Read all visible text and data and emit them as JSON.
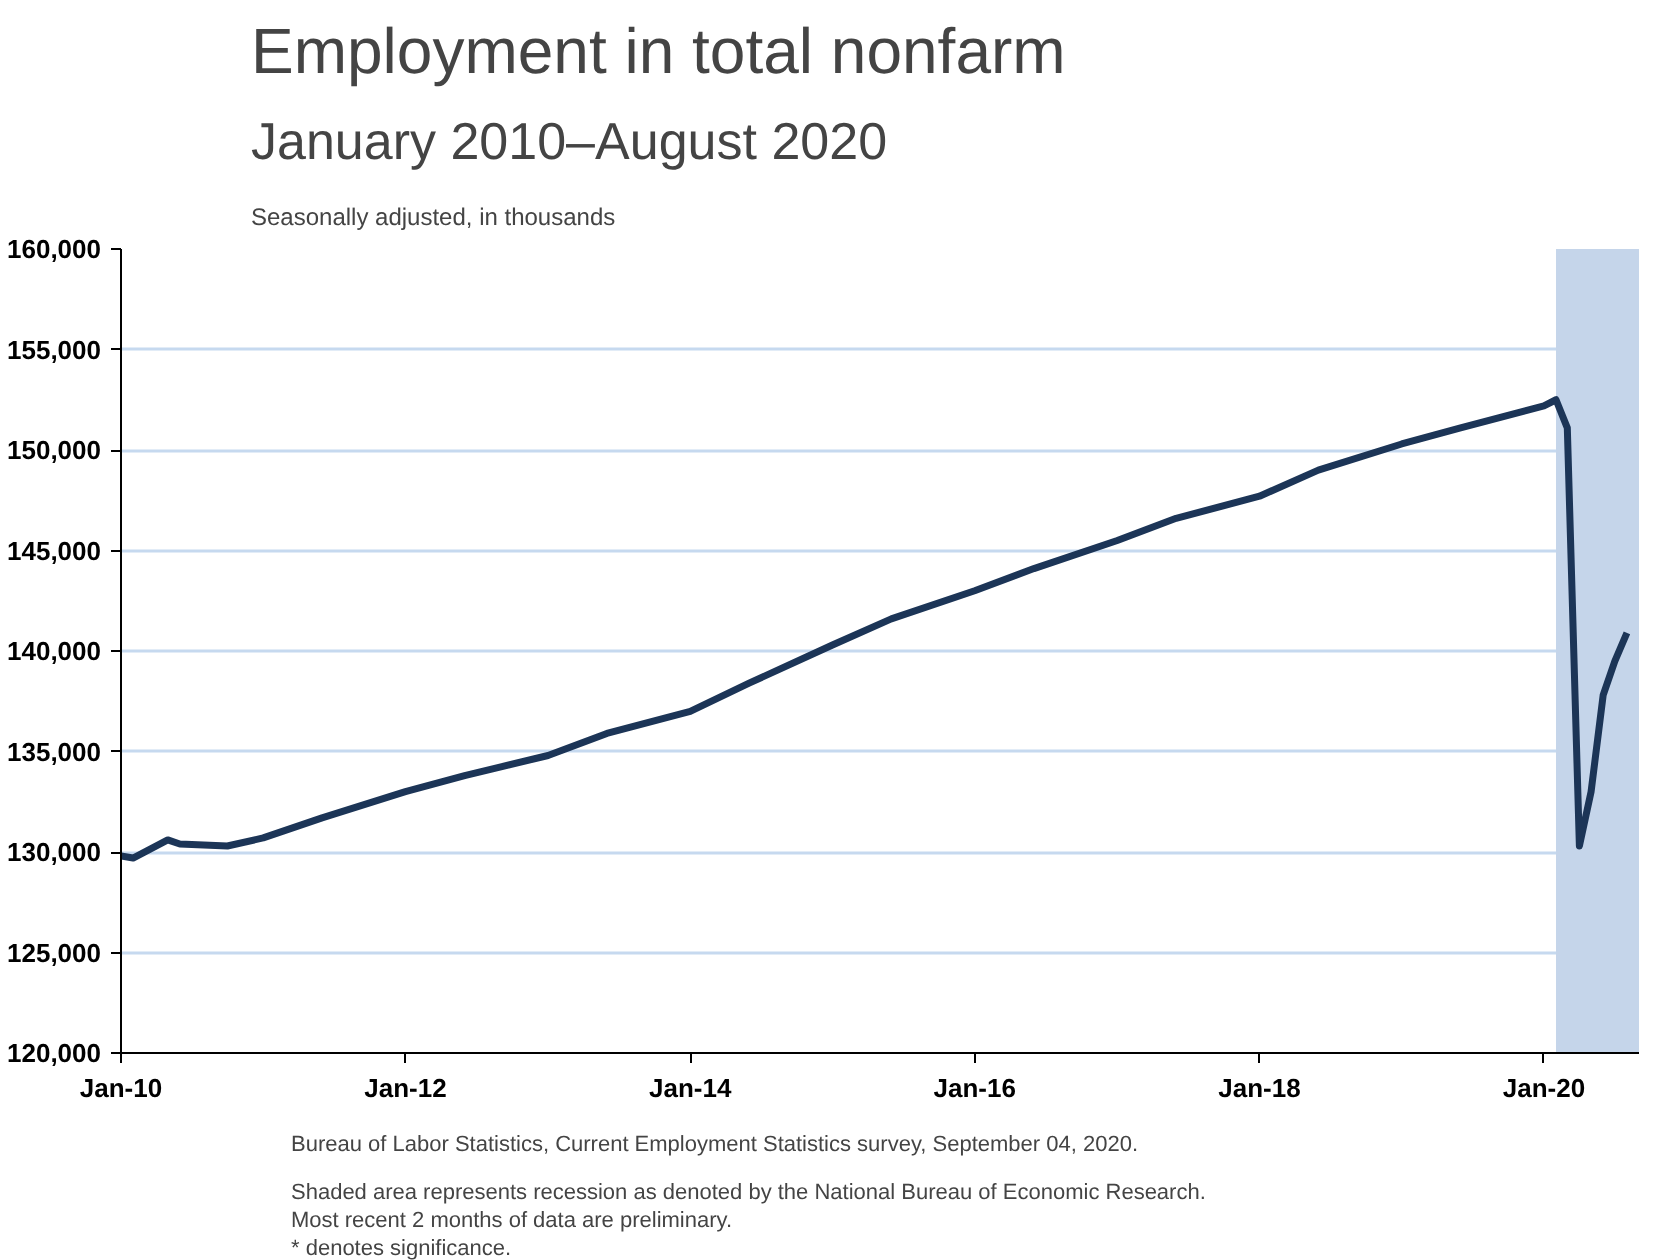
{
  "chart_data": {
    "type": "line",
    "title": "Employment in total nonfarm",
    "subtitle": "January 2010–August 2020",
    "ylabel": "Seasonally adjusted, in thousands",
    "x": [
      "2010-01",
      "2010-02",
      "2010-05",
      "2010-06",
      "2010-10",
      "2011-01",
      "2011-06",
      "2012-01",
      "2012-06",
      "2013-01",
      "2013-06",
      "2014-01",
      "2014-06",
      "2015-01",
      "2015-06",
      "2016-01",
      "2016-06",
      "2017-01",
      "2017-06",
      "2018-01",
      "2018-06",
      "2019-01",
      "2019-06",
      "2020-01",
      "2020-02",
      "2020-03",
      "2020-04",
      "2020-05",
      "2020-06",
      "2020-07",
      "2020-08"
    ],
    "series": [
      {
        "color": "#1c3557",
        "values": [
          129800,
          129700,
          130600,
          130400,
          130300,
          130700,
          131700,
          133000,
          133800,
          134800,
          135900,
          137000,
          138400,
          140300,
          141600,
          143000,
          144100,
          145500,
          146600,
          147700,
          149000,
          150300,
          151100,
          152200,
          152500,
          151100,
          130300,
          133000,
          137800,
          139500,
          140900
        ]
      }
    ],
    "xlim": [
      "2010-01",
      "2020-09"
    ],
    "xticks": [
      {
        "value": "2010-01",
        "label": "Jan-10"
      },
      {
        "value": "2012-01",
        "label": "Jan-12"
      },
      {
        "value": "2014-01",
        "label": "Jan-14"
      },
      {
        "value": "2016-01",
        "label": "Jan-16"
      },
      {
        "value": "2018-01",
        "label": "Jan-18"
      },
      {
        "value": "2020-01",
        "label": "Jan-20"
      }
    ],
    "ylim": [
      120000,
      160000
    ],
    "yticks": [
      {
        "value": 120000,
        "label": "120,000"
      },
      {
        "value": 125000,
        "label": "125,000"
      },
      {
        "value": 130000,
        "label": "130,000"
      },
      {
        "value": 135000,
        "label": "135,000"
      },
      {
        "value": 140000,
        "label": "140,000"
      },
      {
        "value": 145000,
        "label": "145,000"
      },
      {
        "value": 150000,
        "label": "150,000"
      },
      {
        "value": 155000,
        "label": "155,000"
      },
      {
        "value": 160000,
        "label": "160,000"
      }
    ],
    "bands": [
      {
        "axis": "x",
        "from": "2020-02",
        "to": "2020-09",
        "color": "#c5d5ea"
      }
    ],
    "grid": "y",
    "marker": "none",
    "line_style": "solid",
    "annotations": [
      "Bureau of Labor Statistics, Current Employment Statistics survey, September 04, 2020.",
      "Shaded area represents recession as denoted by the National Bureau of Economic Research.",
      "Most recent 2 months of data are preliminary.",
      "* denotes significance."
    ]
  }
}
